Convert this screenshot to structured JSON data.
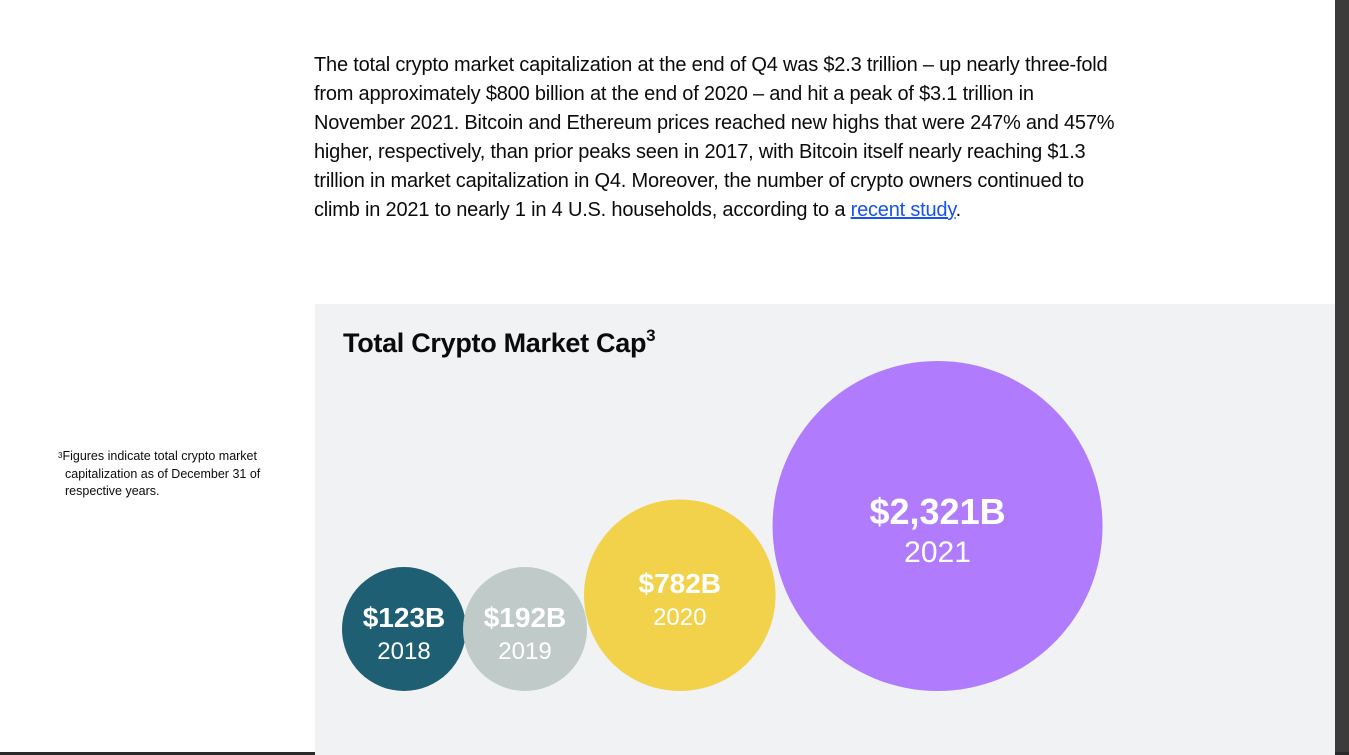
{
  "article": {
    "paragraph_text": "The total crypto market capitalization at the end of Q4 was $2.3 trillion – up nearly three-fold from approximately $800 billion at the end of 2020 – and hit a peak of $3.1 trillion in November 2021. Bitcoin and Ethereum prices reached new highs that were 247% and 457% higher, respectively, than prior peaks seen in 2017, with Bitcoin itself nearly reaching $1.3 trillion in market capitalization in Q4. Moreover, the number of crypto owners continued to climb in 2021 to nearly 1 in 4 U.S. households, according to a ",
    "link_text": "recent study",
    "paragraph_end": "."
  },
  "footnote": {
    "marker": "3",
    "text": "Figures indicate total crypto market capitalization as of December 31 of respective years."
  },
  "chart_data": {
    "type": "bubble",
    "title": "Total Crypto Market Cap",
    "title_footnote_marker": "3",
    "unit": "$B",
    "categories": [
      "2018",
      "2019",
      "2020",
      "2021"
    ],
    "values": [
      123,
      192,
      782,
      2321
    ],
    "value_labels": [
      "$123B",
      "$192B",
      "$782B",
      "$2,321B"
    ],
    "colors": [
      "#1f5f73",
      "#bfcac9",
      "#f2d24b",
      "#b07cfd"
    ],
    "label_colors": [
      "#ffffff",
      "#ffffff",
      "#ffffff",
      "#ffffff"
    ]
  }
}
